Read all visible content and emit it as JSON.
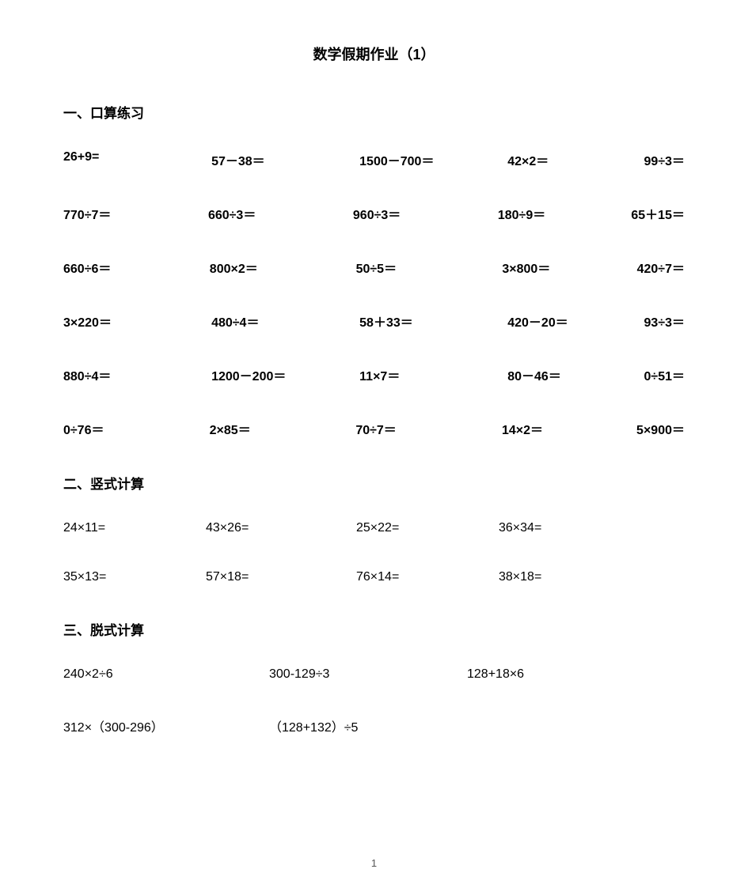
{
  "title": "数学假期作业（1）",
  "section1": {
    "header": "一、口算练习",
    "rows": [
      [
        "26+9=",
        "57－38＝",
        "1500－700＝",
        "42×2＝",
        "99÷3＝"
      ],
      [
        "770÷7＝",
        "660÷3＝",
        "960÷3＝",
        "180÷9＝",
        "65＋15＝"
      ],
      [
        "660÷6＝",
        "800×2＝",
        "50÷5＝",
        "3×800＝",
        "420÷7＝"
      ],
      [
        "3×220＝",
        "480÷4＝",
        "58＋33＝",
        "420－20＝",
        "93÷3＝"
      ],
      [
        "880÷4＝",
        "1200－200＝",
        "11×7＝",
        "80－46＝",
        "0÷51＝"
      ],
      [
        "0÷76＝",
        "2×85＝",
        "70÷7＝",
        "14×2＝",
        "5×900＝"
      ]
    ]
  },
  "section2": {
    "header": "二、竖式计算",
    "rows": [
      [
        "24×11=",
        "43×26=",
        "25×22=",
        "36×34="
      ],
      [
        "35×13=",
        "57×18=",
        "76×14=",
        "38×18="
      ]
    ]
  },
  "section3": {
    "header": "三、脱式计算",
    "rows3": [
      [
        "240×2÷6",
        "300-129÷3",
        "128+18×6"
      ]
    ],
    "rows2": [
      [
        "312×（300-296）",
        "（128+132）÷5"
      ]
    ]
  },
  "page_number": "1",
  "style": {
    "background_color": "#ffffff",
    "text_color": "#000000",
    "title_fontsize": 18,
    "header_fontsize": 17,
    "cell_fontsize_bold": 16,
    "cell_fontsize": 16,
    "font_family": "Microsoft YaHei"
  }
}
